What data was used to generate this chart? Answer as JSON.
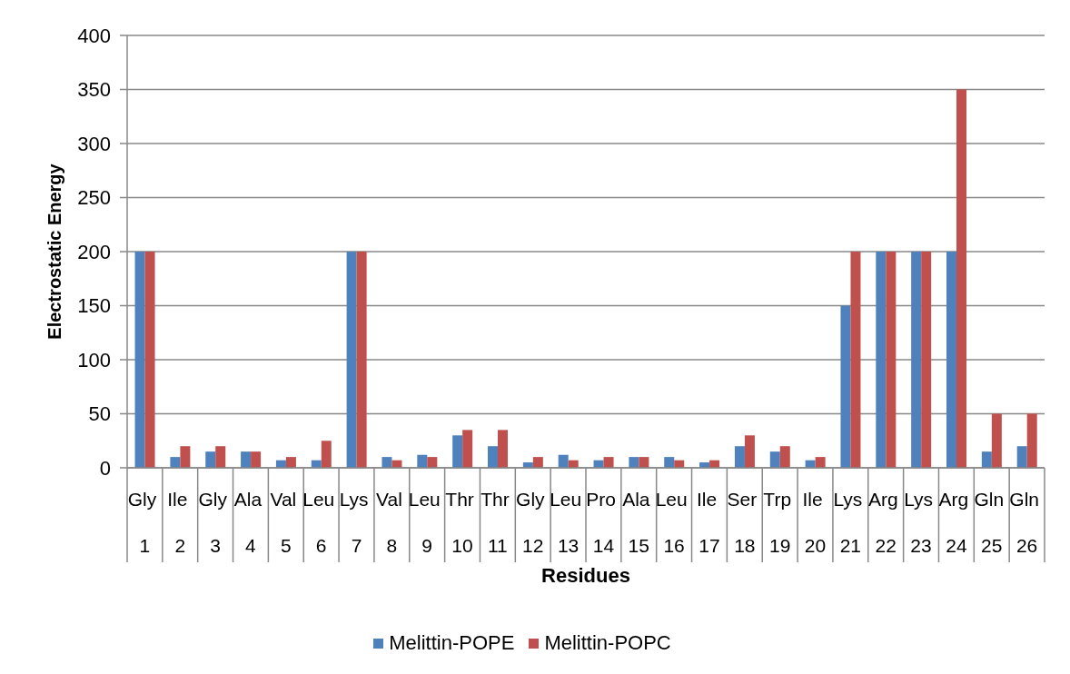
{
  "chart_data": {
    "type": "bar",
    "xlabel": "Residues",
    "ylabel": "Electrostatic Energy",
    "categories": [
      "Gly\n1",
      "Ile\n2",
      "Gly\n3",
      "Ala\n4",
      "Val\n5",
      "Leu\n6",
      "Lys\n7",
      "Val\n8",
      "Leu\n9",
      "Thr\n10",
      "Thr\n11",
      "Gly\n12",
      "Leu\n13",
      "Pro\n14",
      "Ala\n15",
      "Leu\n16",
      "Ile\n17",
      "Ser\n18",
      "Trp\n19",
      "Ile\n20",
      "Lys\n21",
      "Arg\n22",
      "Lys\n23",
      "Arg\n24",
      "Gln\n25",
      "Gln\n26"
    ],
    "series": [
      {
        "name": "Melittin-POPE",
        "color": "#4f81bd",
        "values": [
          200,
          10,
          15,
          15,
          7,
          7,
          200,
          10,
          12,
          30,
          20,
          5,
          12,
          7,
          10,
          10,
          5,
          20,
          15,
          7,
          150,
          200,
          200,
          200,
          15,
          20
        ]
      },
      {
        "name": "Melittin-POPC",
        "color": "#c0504d",
        "values": [
          200,
          20,
          20,
          15,
          10,
          25,
          200,
          7,
          10,
          35,
          35,
          10,
          7,
          10,
          10,
          7,
          7,
          30,
          20,
          10,
          200,
          200,
          200,
          350,
          50,
          50
        ]
      }
    ],
    "ylim": [
      0,
      400
    ],
    "yticks": [
      0,
      50,
      100,
      150,
      200,
      250,
      300,
      350,
      400
    ],
    "grid": "y",
    "legend": "bottom"
  }
}
